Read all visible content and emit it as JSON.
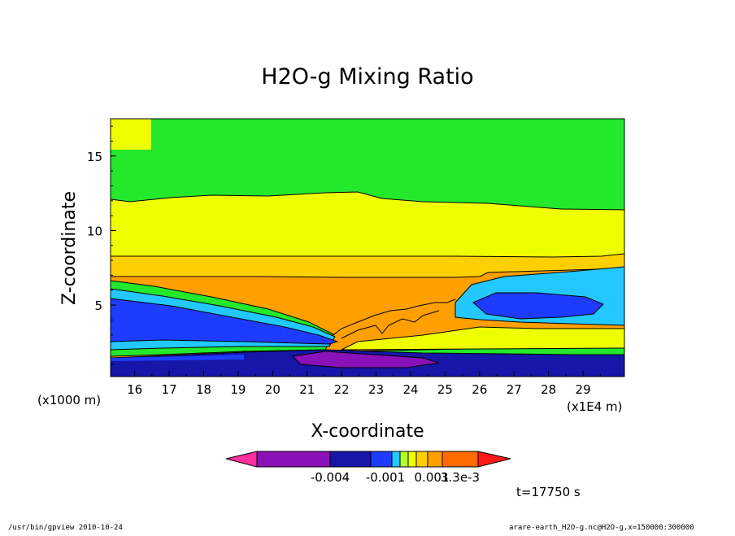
{
  "chart_data": {
    "type": "heatmap",
    "title": "H2O-g Mixing Ratio",
    "xlabel": "X-coordinate",
    "ylabel": "Z-coordinate",
    "x_unit_label": "(x1E4 m)",
    "y_unit_label": "(x1000 m)",
    "xlim": [
      15.3,
      30.2
    ],
    "ylim": [
      0.2,
      17.5
    ],
    "x_ticks": [
      "16",
      "17",
      "18",
      "19",
      "20",
      "21",
      "22",
      "23",
      "24",
      "25",
      "26",
      "27",
      "28",
      "29"
    ],
    "y_ticks": [
      "5",
      "10",
      "15"
    ],
    "time_label": "t=17750 s",
    "colorbar": {
      "colors": [
        "#ff2fa0",
        "#8a10b8",
        "#1616a8",
        "#1e3cff",
        "#22c8ff",
        "#b4ff28",
        "#f0ff00",
        "#ffd000",
        "#ffa000",
        "#ff6a00",
        "#ff1a1a"
      ],
      "tick_labels": [
        "-0.004",
        "-0.001",
        "0.001",
        "3.3e-3"
      ]
    },
    "bands": [
      {
        "name": "upper-green",
        "z_top": 17.5,
        "z_bottom": 12.0,
        "color": "#24e82c"
      },
      {
        "name": "upper-yellow",
        "z_top": 12.0,
        "z_bottom": 8.2,
        "color": "#f0ff00"
      },
      {
        "name": "mid-orange",
        "z_top": 8.2,
        "z_bottom": 6.5,
        "color": "#ffd000"
      },
      {
        "name": "core-orange",
        "z_top": 6.5,
        "z_bottom": 2.5,
        "color": "#ffa000"
      },
      {
        "name": "low-blue",
        "z_top": 2.5,
        "z_bottom": 1.0,
        "color": "#1e3cff"
      },
      {
        "name": "surface-navy",
        "z_top": 1.0,
        "z_bottom": 0.2,
        "color": "#1616a8"
      }
    ]
  },
  "footer": {
    "left": "/usr/bin/gpview   2010-10-24",
    "right": "arare-earth_H2O-g.nc@H2O-g,x=150000:300000"
  }
}
